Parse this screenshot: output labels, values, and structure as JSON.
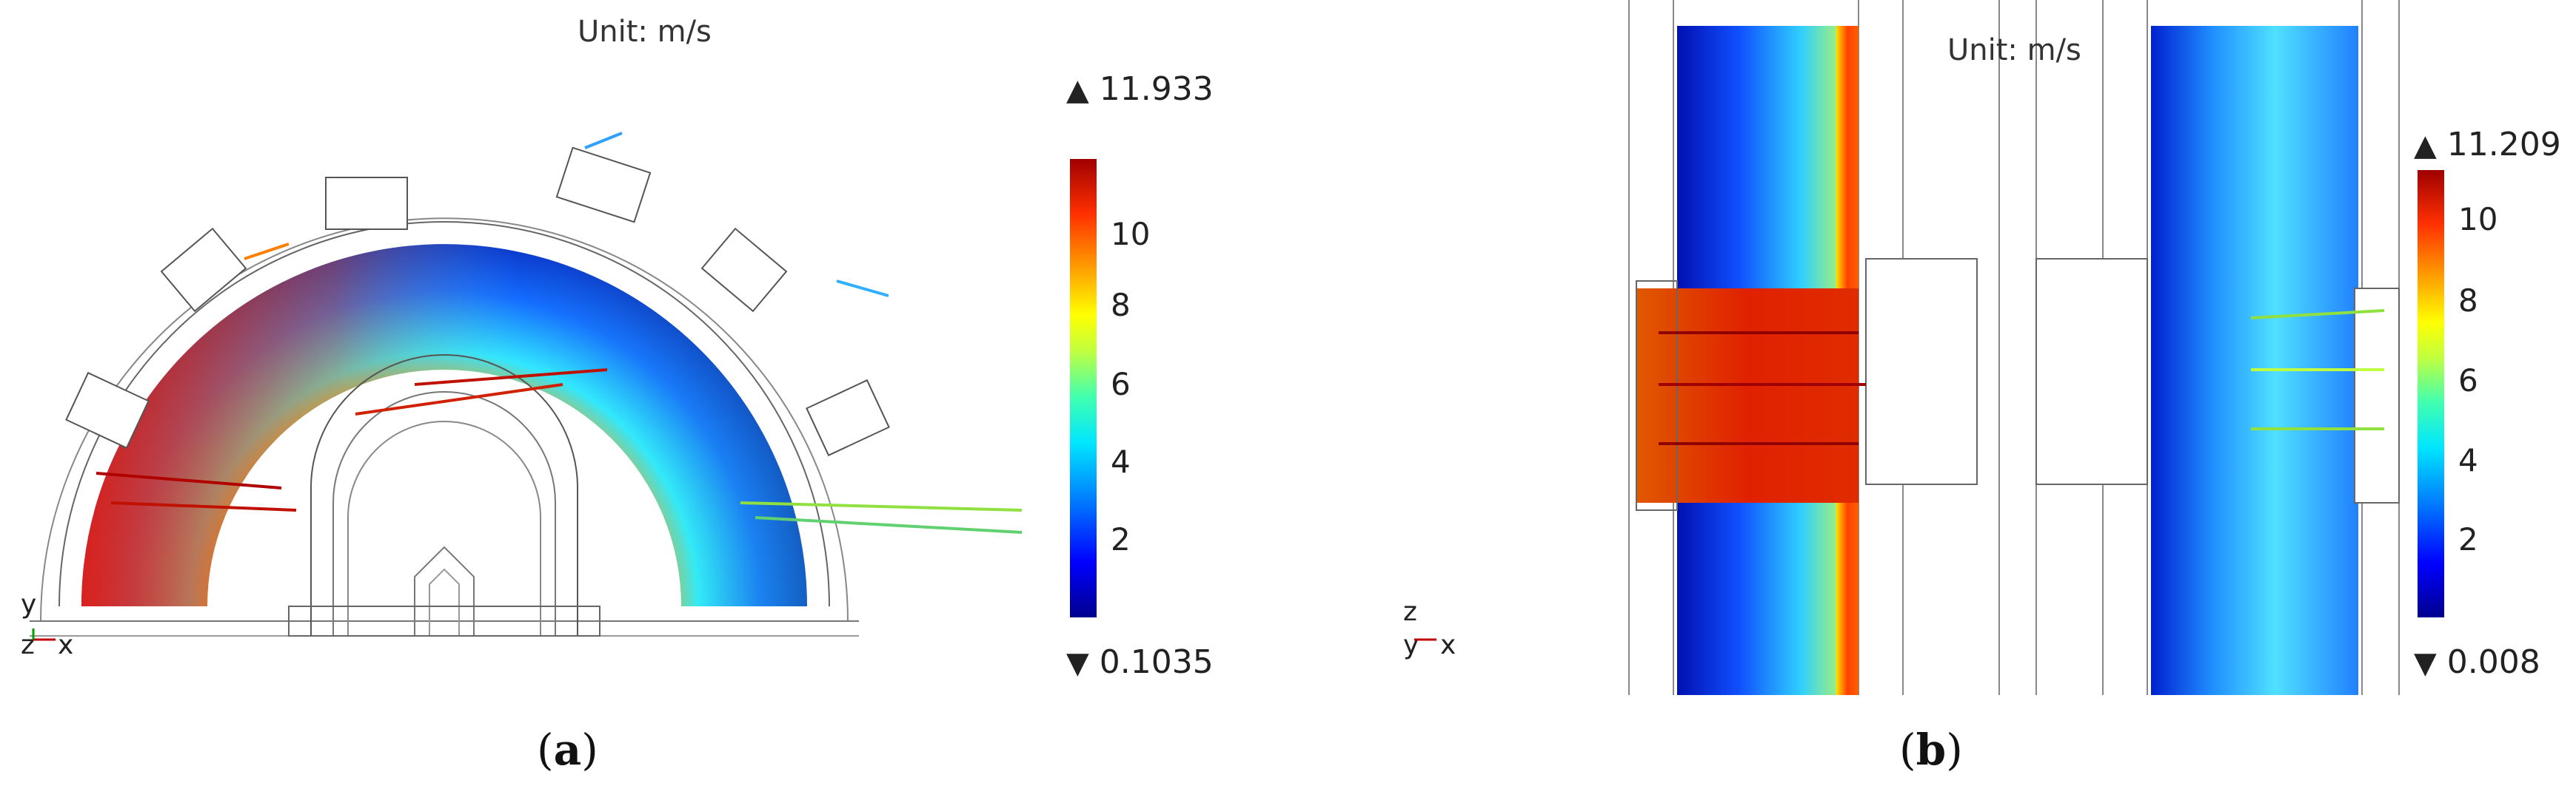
{
  "panels": [
    {
      "id": "a",
      "unit": "Unit: m/s",
      "max": "11.933",
      "min": "0.1035",
      "ticks": [
        "10",
        "8",
        "6",
        "4",
        "2"
      ],
      "axes": {
        "y": "y",
        "z": "z",
        "x": "x"
      },
      "caption_letter": "a"
    },
    {
      "id": "b",
      "unit": "Unit: m/s",
      "max": "11.209",
      "min": "0.008",
      "ticks": [
        "10",
        "8",
        "6",
        "4",
        "2"
      ],
      "axes": {
        "y": "y",
        "z": "z",
        "x": "x"
      },
      "caption_letter": "b"
    }
  ],
  "colors": {
    "low": "#00008f",
    "mid": "#40ffb0",
    "high": "#a00000"
  }
}
